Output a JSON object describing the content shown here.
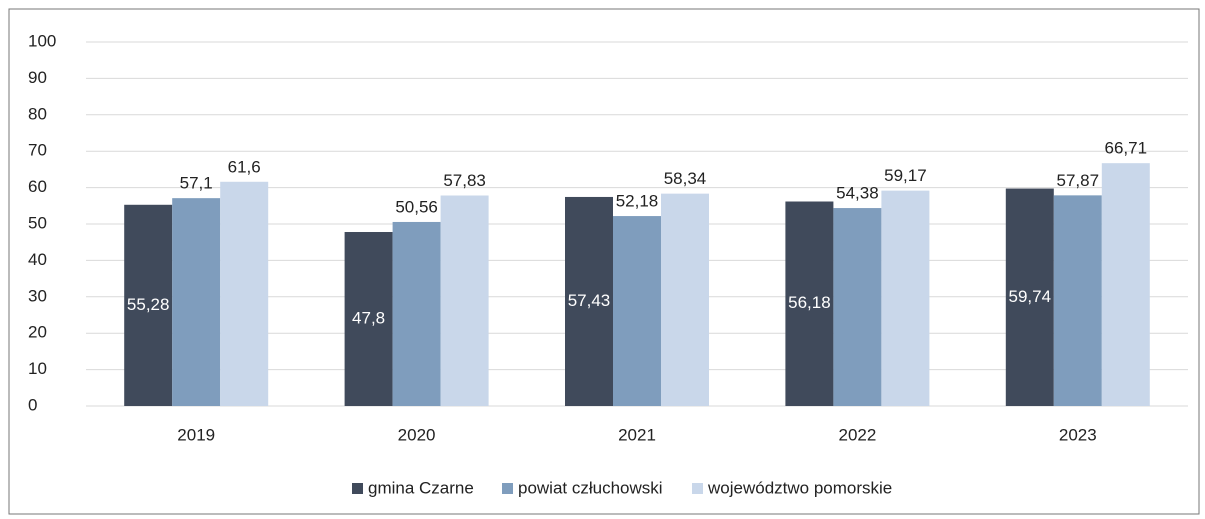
{
  "chart_data": {
    "type": "bar",
    "categories": [
      "2019",
      "2020",
      "2021",
      "2022",
      "2023"
    ],
    "series": [
      {
        "name": "gmina Czarne",
        "color": "#404a5b",
        "values": [
          55.28,
          47.8,
          57.43,
          56.18,
          59.74
        ],
        "value_labels": [
          "55,28",
          "47,8",
          "57,43",
          "56,18",
          "59,74"
        ]
      },
      {
        "name": "powiat człuchowski",
        "color": "#7f9dbd",
        "values": [
          57.1,
          50.56,
          52.18,
          54.38,
          57.87
        ],
        "value_labels": [
          "57,1",
          "50,56",
          "52,18",
          "54,38",
          "57,87"
        ]
      },
      {
        "name": "województwo pomorskie",
        "color": "#c9d7ea",
        "values": [
          61.6,
          57.83,
          58.34,
          59.17,
          66.71
        ],
        "value_labels": [
          "61,6",
          "57,83",
          "58,34",
          "59,17",
          "66,71"
        ]
      }
    ],
    "ylim": [
      0,
      100
    ],
    "yticks": [
      0,
      10,
      20,
      30,
      40,
      50,
      60,
      70,
      80,
      90,
      100
    ],
    "grid": true,
    "legend": "bottom"
  }
}
